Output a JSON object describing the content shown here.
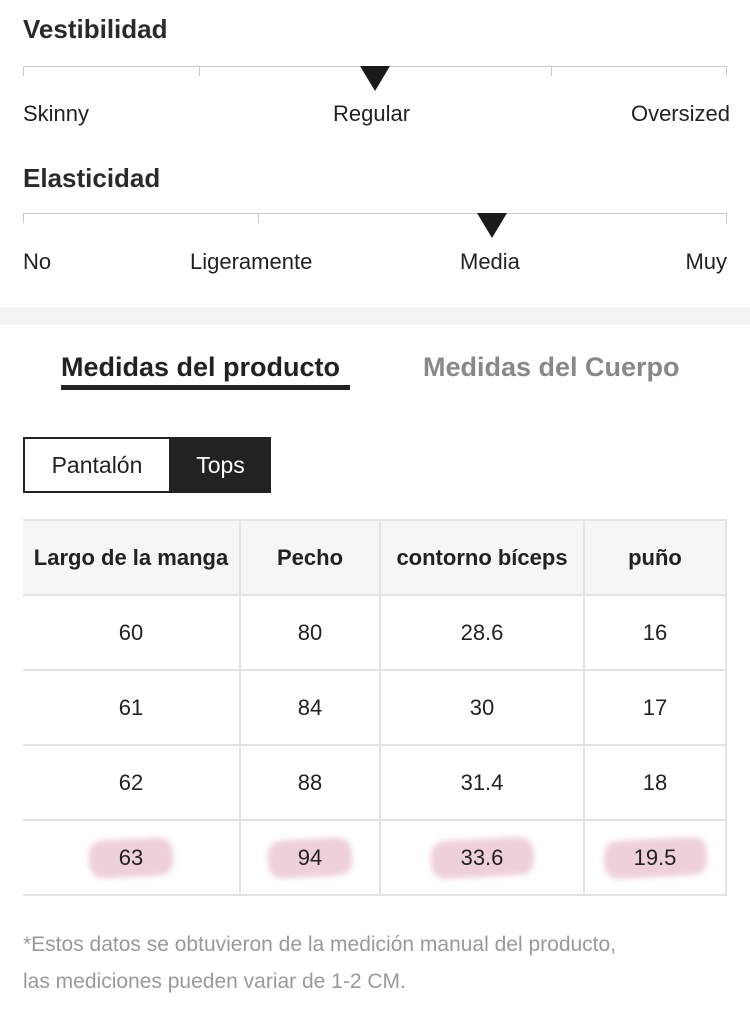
{
  "fit": {
    "title": "Vestibilidad",
    "labels": [
      "Skinny",
      "Regular",
      "Oversized"
    ],
    "selected": "Regular"
  },
  "elasticity": {
    "title": "Elasticidad",
    "labels": [
      "No",
      "Ligeramente",
      "Media",
      "Muy"
    ],
    "selected": "Media"
  },
  "tabs": {
    "product": "Medidas del producto",
    "body": "Medidas del Cuerpo",
    "active": "product"
  },
  "segments": {
    "pants": "Pantalón",
    "tops": "Tops",
    "active": "tops"
  },
  "table": {
    "headers": [
      "Largo de la manga",
      "Pecho",
      "contorno bíceps",
      "puño"
    ],
    "rows": [
      [
        "60",
        "80",
        "28.6",
        "16"
      ],
      [
        "61",
        "84",
        "30",
        "17"
      ],
      [
        "62",
        "88",
        "31.4",
        "18"
      ],
      [
        "63",
        "94",
        "33.6",
        "19.5"
      ]
    ]
  },
  "note": {
    "line1": "*Estos datos se obtuvieron de la medición manual del producto,",
    "line2": "las mediciones pueden variar de 1-2 CM."
  },
  "colors": {
    "accent": "#222222",
    "inactive_tab": "#888888",
    "highlight": "#d88aa6"
  }
}
